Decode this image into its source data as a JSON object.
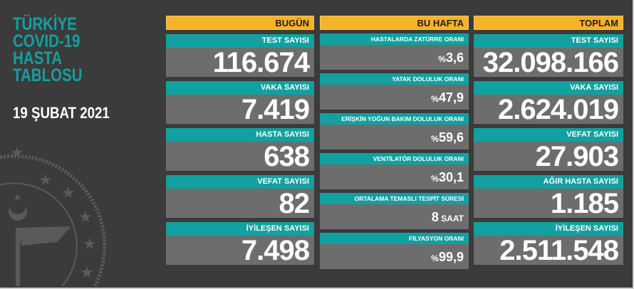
{
  "title": "TÜRKİYE\nCOVID-19\nHASTA\nTABLOSU",
  "date": "19 ŞUBAT 2021",
  "colors": {
    "background": "#3b3b3b",
    "teal": "#12a0a0",
    "header": "#f6b22c",
    "value_bg": "#6d6d6d"
  },
  "today": {
    "header": "BUGÜN",
    "items": [
      {
        "label": "TEST SAYISI",
        "value": "116.674"
      },
      {
        "label": "VAKA SAYISI",
        "value": "7.419"
      },
      {
        "label": "HASTA SAYISI",
        "value": "638"
      },
      {
        "label": "VEFAT SAYISI",
        "value": "82"
      },
      {
        "label": "İYİLEŞEN SAYISI",
        "value": "7.498"
      }
    ]
  },
  "week": {
    "header": "BU HAFTA",
    "items": [
      {
        "label": "HASTALARDA ZATÜRRE ORANI",
        "prefix": "%",
        "value": "3,6",
        "suffix": ""
      },
      {
        "label": "YATAK DOLULUK ORANI",
        "prefix": "%",
        "value": "47,9",
        "suffix": ""
      },
      {
        "label": "ERİŞKİN YOĞUN BAKIM DOLULUK ORANI",
        "prefix": "%",
        "value": "59,6",
        "suffix": ""
      },
      {
        "label": "VENTİLATÖR DOLULUK ORANI",
        "prefix": "%",
        "value": "30,1",
        "suffix": ""
      },
      {
        "label": "ORTALAMA TEMASLI TESPİT SÜRESİ",
        "prefix": "",
        "value": "8",
        "suffix": " SAAT"
      },
      {
        "label": "FİLYASYON ORANI",
        "prefix": "%",
        "value": "99,9",
        "suffix": ""
      }
    ]
  },
  "total": {
    "header": "TOPLAM",
    "items": [
      {
        "label": "TEST SAYISI",
        "value": "32.098.166"
      },
      {
        "label": "VAKA SAYISI",
        "value": "2.624.019"
      },
      {
        "label": "VEFAT SAYISI",
        "value": "27.903"
      },
      {
        "label": "AĞIR HASTA SAYISI",
        "value": "1.185"
      },
      {
        "label": "İYİLEŞEN SAYISI",
        "value": "2.511.548"
      }
    ]
  }
}
